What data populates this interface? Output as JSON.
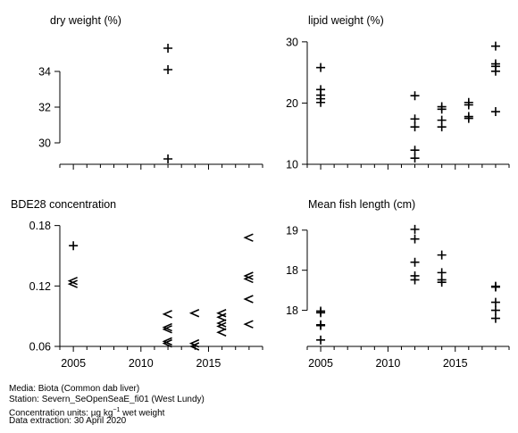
{
  "chart_data": [
    {
      "type": "scatter",
      "title": "dry weight (%)",
      "xlim": [
        2004,
        2019
      ],
      "x_ticks": [
        2005,
        2010,
        2015
      ],
      "show_x_labels": false,
      "ylim": [
        28.8,
        36.0
      ],
      "y_ticks": [
        30,
        32,
        34
      ],
      "points": [
        {
          "x": 2012,
          "y": 35.3,
          "marker": "+"
        },
        {
          "x": 2012,
          "y": 34.1,
          "marker": "+"
        },
        {
          "x": 2012,
          "y": 29.1,
          "marker": "+"
        }
      ]
    },
    {
      "type": "scatter",
      "title": "lipid weight (%)",
      "xlim": [
        2004,
        2019
      ],
      "x_ticks": [
        2005,
        2010,
        2015
      ],
      "show_x_labels": false,
      "ylim": [
        10,
        31
      ],
      "y_ticks": [
        10,
        20,
        30
      ],
      "points": [
        {
          "x": 2005,
          "y": 25.8,
          "marker": "+"
        },
        {
          "x": 2005,
          "y": 22.2,
          "marker": "+"
        },
        {
          "x": 2005,
          "y": 21.3,
          "marker": "+"
        },
        {
          "x": 2005,
          "y": 20.7,
          "marker": "+"
        },
        {
          "x": 2005,
          "y": 20.1,
          "marker": "+"
        },
        {
          "x": 2012,
          "y": 21.2,
          "marker": "+"
        },
        {
          "x": 2012,
          "y": 17.4,
          "marker": "+"
        },
        {
          "x": 2012,
          "y": 16.1,
          "marker": "+"
        },
        {
          "x": 2012,
          "y": 12.3,
          "marker": "+"
        },
        {
          "x": 2012,
          "y": 11.0,
          "marker": "+"
        },
        {
          "x": 2014,
          "y": 19.4,
          "marker": "+"
        },
        {
          "x": 2014,
          "y": 19.0,
          "marker": "+"
        },
        {
          "x": 2014,
          "y": 17.2,
          "marker": "+"
        },
        {
          "x": 2014,
          "y": 16.1,
          "marker": "+"
        },
        {
          "x": 2016,
          "y": 20.1,
          "marker": "+"
        },
        {
          "x": 2016,
          "y": 19.7,
          "marker": "+"
        },
        {
          "x": 2016,
          "y": 17.8,
          "marker": "+"
        },
        {
          "x": 2016,
          "y": 17.5,
          "marker": "+"
        },
        {
          "x": 2018,
          "y": 29.3,
          "marker": "+"
        },
        {
          "x": 2018,
          "y": 26.4,
          "marker": "+"
        },
        {
          "x": 2018,
          "y": 26.0,
          "marker": "+"
        },
        {
          "x": 2018,
          "y": 25.2,
          "marker": "+"
        },
        {
          "x": 2018,
          "y": 18.6,
          "marker": "+"
        }
      ]
    },
    {
      "type": "scatter",
      "title": "BDE28 concentration",
      "xlim": [
        2004,
        2019
      ],
      "x_ticks": [
        2005,
        2010,
        2015
      ],
      "show_x_labels": true,
      "ylim": [
        0.06,
        0.185
      ],
      "y_ticks": [
        0.06,
        0.12,
        0.18
      ],
      "points": [
        {
          "x": 2005,
          "y": 0.16,
          "marker": "+"
        },
        {
          "x": 2005,
          "y": 0.125,
          "marker": "<"
        },
        {
          "x": 2005,
          "y": 0.122,
          "marker": "<"
        },
        {
          "x": 2012,
          "y": 0.092,
          "marker": "<"
        },
        {
          "x": 2012,
          "y": 0.079,
          "marker": "<"
        },
        {
          "x": 2012,
          "y": 0.077,
          "marker": "<"
        },
        {
          "x": 2012,
          "y": 0.065,
          "marker": "<"
        },
        {
          "x": 2012,
          "y": 0.063,
          "marker": "<"
        },
        {
          "x": 2014,
          "y": 0.093,
          "marker": "<"
        },
        {
          "x": 2014,
          "y": 0.063,
          "marker": "<"
        },
        {
          "x": 2014,
          "y": 0.06,
          "marker": "<"
        },
        {
          "x": 2016,
          "y": 0.093,
          "marker": "<"
        },
        {
          "x": 2016,
          "y": 0.089,
          "marker": "<"
        },
        {
          "x": 2016,
          "y": 0.083,
          "marker": "<"
        },
        {
          "x": 2016,
          "y": 0.08,
          "marker": "<"
        },
        {
          "x": 2016,
          "y": 0.074,
          "marker": "<"
        },
        {
          "x": 2018,
          "y": 0.168,
          "marker": "<"
        },
        {
          "x": 2018,
          "y": 0.13,
          "marker": "<"
        },
        {
          "x": 2018,
          "y": 0.127,
          "marker": "<"
        },
        {
          "x": 2018,
          "y": 0.107,
          "marker": "<"
        },
        {
          "x": 2018,
          "y": 0.082,
          "marker": "<"
        }
      ]
    },
    {
      "type": "scatter",
      "title": "Mean fish length (cm)",
      "xlim": [
        2004,
        2019
      ],
      "x_ticks": [
        2005,
        2010,
        2015
      ],
      "show_x_labels": true,
      "ylim": [
        17.05,
        18.62
      ],
      "y_ticks": [
        17.5,
        18.0,
        18.5
      ],
      "points": [
        {
          "x": 2005,
          "y": 17.49,
          "marker": "+"
        },
        {
          "x": 2005,
          "y": 17.47,
          "marker": "+"
        },
        {
          "x": 2005,
          "y": 17.32,
          "marker": "+"
        },
        {
          "x": 2005,
          "y": 17.31,
          "marker": "+"
        },
        {
          "x": 2005,
          "y": 17.13,
          "marker": "+"
        },
        {
          "x": 2012,
          "y": 18.51,
          "marker": "+"
        },
        {
          "x": 2012,
          "y": 18.39,
          "marker": "+"
        },
        {
          "x": 2012,
          "y": 18.1,
          "marker": "+"
        },
        {
          "x": 2012,
          "y": 17.93,
          "marker": "+"
        },
        {
          "x": 2012,
          "y": 17.88,
          "marker": "+"
        },
        {
          "x": 2014,
          "y": 18.19,
          "marker": "+"
        },
        {
          "x": 2014,
          "y": 17.97,
          "marker": "+"
        },
        {
          "x": 2014,
          "y": 17.88,
          "marker": "+"
        },
        {
          "x": 2014,
          "y": 17.85,
          "marker": "+"
        },
        {
          "x": 2018,
          "y": 17.8,
          "marker": "+"
        },
        {
          "x": 2018,
          "y": 17.79,
          "marker": "+"
        },
        {
          "x": 2018,
          "y": 17.6,
          "marker": "+"
        },
        {
          "x": 2018,
          "y": 17.5,
          "marker": "+"
        },
        {
          "x": 2018,
          "y": 17.4,
          "marker": "+"
        }
      ]
    }
  ],
  "footer": {
    "media": "Media: Biota (Common dab liver)",
    "station": "Station: Severn_SeOpenSeaE_fi01 (West Lundy)",
    "units_prefix": "Concentration units:",
    "units_value": "µg kg",
    "units_exp": "−1",
    "units_suffix": "wet weight",
    "extraction": "Data extraction: 30 April 2020"
  }
}
